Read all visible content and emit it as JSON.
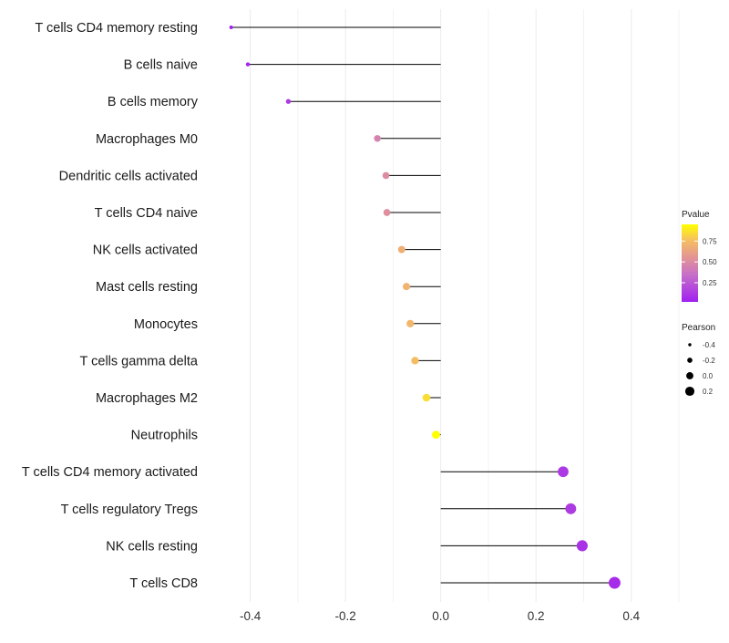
{
  "chart_data": {
    "type": "lollipop",
    "title": "",
    "xlabel": "",
    "ylabel": "",
    "xlim": [
      -0.47,
      0.5
    ],
    "x_ticks": [
      -0.4,
      -0.2,
      0.0,
      0.2,
      0.4
    ],
    "x_tick_labels": [
      "-0.4",
      "-0.2",
      "0.0",
      "0.2",
      "0.4"
    ],
    "categories": [
      "T cells CD4 memory resting",
      "B cells naive",
      "B cells memory",
      "Macrophages M0",
      "Dendritic cells activated",
      "T cells CD4 naive",
      "NK cells activated",
      "Mast cells resting",
      "Monocytes",
      "T cells gamma delta",
      "Macrophages M2",
      "Neutrophils",
      "T cells CD4 memory activated",
      "T cells regulatory  Tregs ",
      "NK cells resting",
      "T cells CD8"
    ],
    "pearson": [
      -0.44,
      -0.405,
      -0.32,
      -0.133,
      -0.115,
      -0.113,
      -0.082,
      -0.072,
      -0.064,
      -0.054,
      -0.03,
      -0.01,
      0.257,
      0.273,
      0.297,
      0.365
    ],
    "pvalue": [
      0.03,
      0.05,
      0.12,
      0.45,
      0.5,
      0.52,
      0.68,
      0.7,
      0.72,
      0.75,
      0.85,
      0.95,
      0.12,
      0.13,
      0.1,
      0.07
    ],
    "color_legend": {
      "title": "Pvalue",
      "ticks": [
        0.75,
        0.5,
        0.25
      ],
      "tick_labels": [
        "0.75",
        "0.50",
        "0.25"
      ],
      "range": [
        0.02,
        0.95
      ],
      "colors": [
        "#a020f0",
        "#c060d8",
        "#d8889a",
        "#f4b860",
        "#ffff00"
      ]
    },
    "size_legend": {
      "title": "Pearson",
      "values": [
        -0.4,
        -0.2,
        0.0,
        0.2
      ],
      "labels": [
        "-0.4",
        "-0.2",
        "0.0",
        "0.2"
      ]
    },
    "line_color": "#000000",
    "grid": true,
    "legend_position": "right"
  }
}
